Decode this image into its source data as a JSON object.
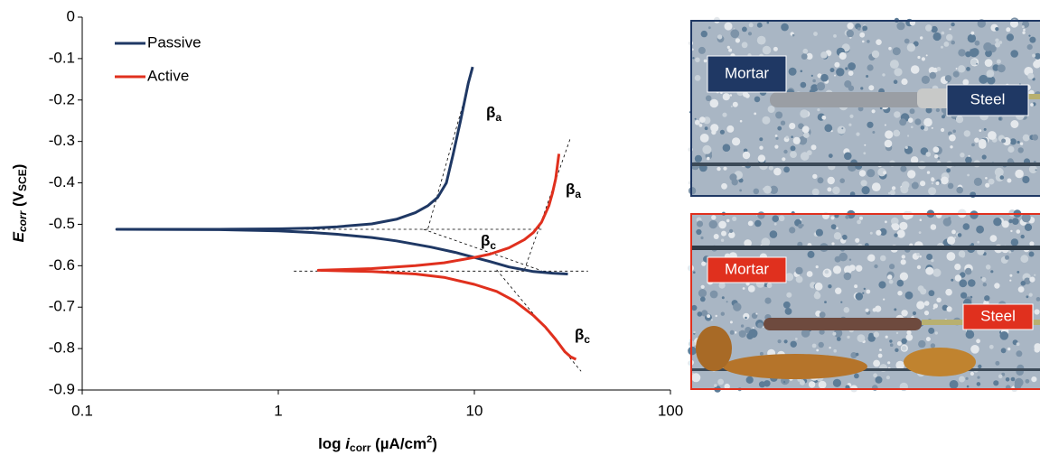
{
  "chart_data": {
    "type": "line",
    "x_label_parts": [
      "log ",
      "i",
      "corr",
      " (µA/cm",
      "2",
      ")"
    ],
    "y_label_parts": [
      "E",
      "corr",
      " (V",
      "SCE",
      ")"
    ],
    "xscale": "log",
    "xlim": [
      0.1,
      100
    ],
    "xticks": [
      0.1,
      1,
      10,
      100
    ],
    "ylim": [
      -0.9,
      0
    ],
    "yticks": [
      0,
      -0.1,
      -0.2,
      -0.3,
      -0.4,
      -0.5,
      -0.6,
      -0.7,
      -0.8,
      -0.9
    ],
    "legend": "upper left",
    "series": [
      {
        "name": "Passive",
        "color": "#1f3864",
        "x": [
          9.8,
          9.3,
          8.5,
          7.8,
          7.2,
          6.5,
          5.8,
          5,
          4,
          3,
          2,
          1.5,
          1,
          0.5,
          0.15,
          0.5,
          1,
          1.5,
          2,
          3,
          4,
          6,
          8,
          10,
          12,
          15,
          20,
          25,
          30
        ],
        "values": [
          -0.12,
          -0.16,
          -0.25,
          -0.33,
          -0.4,
          -0.435,
          -0.455,
          -0.472,
          -0.488,
          -0.499,
          -0.506,
          -0.509,
          -0.511,
          -0.512,
          -0.512,
          -0.513,
          -0.516,
          -0.52,
          -0.524,
          -0.532,
          -0.54,
          -0.555,
          -0.568,
          -0.58,
          -0.59,
          -0.603,
          -0.614,
          -0.618,
          -0.62
        ]
      },
      {
        "name": "Active",
        "color": "#e0301e",
        "x": [
          27,
          26.5,
          26,
          25,
          24,
          22,
          20,
          18,
          15,
          12,
          10,
          7,
          5,
          3,
          1.6,
          3,
          5,
          7,
          10,
          13,
          16,
          20,
          23,
          26,
          29,
          31,
          33
        ],
        "values": [
          -0.33,
          -0.36,
          -0.39,
          -0.425,
          -0.455,
          -0.495,
          -0.52,
          -0.537,
          -0.557,
          -0.572,
          -0.58,
          -0.593,
          -0.6,
          -0.607,
          -0.611,
          -0.614,
          -0.62,
          -0.628,
          -0.645,
          -0.662,
          -0.685,
          -0.72,
          -0.748,
          -0.778,
          -0.808,
          -0.82,
          -0.826
        ]
      }
    ],
    "tangents": [
      {
        "x": [
          0.5,
          22
        ],
        "values": [
          -0.512,
          -0.512
        ]
      },
      {
        "x": [
          5.8,
          9.9
        ],
        "values": [
          -0.51,
          -0.12
        ]
      },
      {
        "x": [
          5.5,
          22
        ],
        "values": [
          -0.512,
          -0.612
        ]
      },
      {
        "x": [
          1.2,
          38
        ],
        "values": [
          -0.613,
          -0.613
        ]
      },
      {
        "x": [
          18,
          31
        ],
        "values": [
          -0.61,
          -0.29
        ]
      },
      {
        "x": [
          13,
          35
        ],
        "values": [
          -0.61,
          -0.855
        ]
      }
    ],
    "annotations": [
      {
        "text": "β",
        "sub": "a"
      },
      {
        "text": "β",
        "sub": "c"
      },
      {
        "text": "β",
        "sub": "a"
      },
      {
        "text": "β",
        "sub": "c"
      }
    ]
  },
  "photos": [
    {
      "labels": [
        "Mortar",
        "Steel"
      ],
      "color": "#1f3864"
    },
    {
      "labels": [
        "Mortar",
        "Steel"
      ],
      "color": "#e0301e"
    }
  ]
}
